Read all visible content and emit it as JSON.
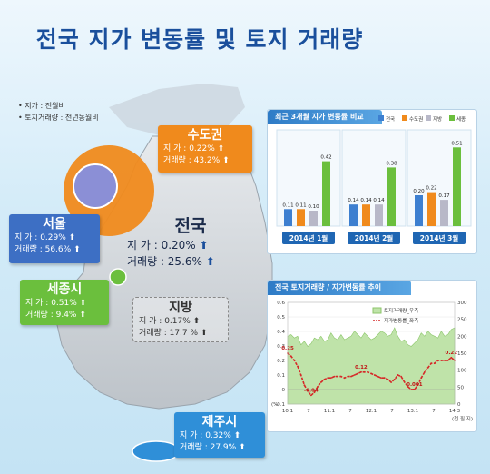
{
  "title": "전국 지가 변동률 및 토지 거래량",
  "notes": [
    "• 지가 : 전월비",
    "• 토지거래량 : 전년동월비"
  ],
  "regions": [
    {
      "name": "수도권",
      "jiga_label": "지 가",
      "jiga": "0.22%",
      "trade_label": "거래량",
      "trade": "43.2%"
    },
    {
      "name": "서울",
      "jiga_label": "지 가",
      "jiga": "0.29%",
      "trade_label": "거래량",
      "trade": "56.6%"
    },
    {
      "name": "전국",
      "jiga_label": "지 가",
      "jiga": "0.20%",
      "trade_label": "거래량",
      "trade": "25.6%"
    },
    {
      "name": "세종시",
      "jiga_label": "지 가",
      "jiga": "0.51%",
      "trade_label": "거래량",
      "trade": "9.4%"
    },
    {
      "name": "지방",
      "jiga_label": "지 가",
      "jiga": "0.17%",
      "trade_label": "거래량",
      "trade": "17.7 %"
    },
    {
      "name": "제주시",
      "jiga_label": "지 가",
      "jiga": "0.32%",
      "trade_label": "거래량",
      "trade": "27.9%"
    }
  ],
  "colors": {
    "capital": "#f08a1c",
    "seoul": "#3d6fc4",
    "sejong": "#6bbf3d",
    "jeju": "#2f8fd8",
    "region": "#555555"
  },
  "chart_data": [
    {
      "type": "bar",
      "title": "최근 3개월 지가 변동률 비교",
      "legend": [
        "전국",
        "수도권",
        "지방",
        "세종"
      ],
      "legend_colors": [
        "#3d7fd0",
        "#f08a1c",
        "#b8b8c8",
        "#6bbf3d"
      ],
      "categories": [
        "2014년 1월",
        "2014년 2월",
        "2014년 3월"
      ],
      "series": [
        {
          "name": "전국",
          "values": [
            0.11,
            0.14,
            0.2
          ]
        },
        {
          "name": "수도권",
          "values": [
            0.11,
            0.14,
            0.22
          ]
        },
        {
          "name": "지방",
          "values": [
            0.1,
            0.14,
            0.17
          ]
        },
        {
          "name": "세종",
          "values": [
            0.42,
            0.38,
            0.51
          ]
        }
      ],
      "ylim": [
        0,
        0.6
      ]
    },
    {
      "type": "line",
      "title": "전국 토지거래량 / 지가변동률 추이",
      "legend": [
        "토지거래량_우측",
        "지가변동률_좌측"
      ],
      "left_ticks": [
        "0.6",
        "0.5",
        "0.4",
        "0.3",
        "0.2",
        "0.1",
        "0",
        "-0.1"
      ],
      "right_ticks": [
        "300",
        "250",
        "200",
        "150",
        "100",
        "50",
        "0"
      ],
      "x_ticks": [
        "10.1",
        "7",
        "11.1",
        "7",
        "12.1",
        "7",
        "13.1",
        "7",
        "14.3"
      ],
      "ylabel_left": "(%)",
      "xlabel_right": "(천 필 지)",
      "left_ylim": [
        -0.1,
        0.6
      ],
      "right_ylim": [
        0,
        300
      ],
      "land_rate": [
        0.25,
        0.23,
        0.2,
        0.16,
        0.1,
        0.03,
        -0.01,
        -0.04,
        -0.02,
        0.02,
        0.05,
        0.07,
        0.08,
        0.08,
        0.09,
        0.09,
        0.09,
        0.08,
        0.09,
        0.09,
        0.1,
        0.11,
        0.12,
        0.12,
        0.12,
        0.11,
        0.1,
        0.09,
        0.08,
        0.08,
        0.07,
        0.05,
        0.07,
        0.1,
        0.09,
        0.05,
        0.02,
        0.0,
        0.001,
        0.03,
        0.08,
        0.12,
        0.15,
        0.18,
        0.18,
        0.2,
        0.2,
        0.2,
        0.2,
        0.22,
        0.2
      ],
      "trade_volume": [
        200,
        205,
        195,
        200,
        175,
        185,
        170,
        178,
        195,
        190,
        200,
        185,
        190,
        210,
        195,
        190,
        205,
        190,
        195,
        200,
        215,
        205,
        195,
        210,
        200,
        190,
        195,
        205,
        215,
        210,
        200,
        205,
        225,
        200,
        185,
        190,
        175,
        170,
        180,
        190,
        210,
        200,
        215,
        205,
        200,
        195,
        215,
        200,
        205,
        220,
        225
      ],
      "labels": [
        {
          "index": 0,
          "text": "0.25"
        },
        {
          "index": 7,
          "text": "-0.04"
        },
        {
          "index": 22,
          "text": "0.12"
        },
        {
          "index": 38,
          "text": "0.001"
        },
        {
          "index": 49,
          "text": "0.22"
        }
      ]
    }
  ]
}
